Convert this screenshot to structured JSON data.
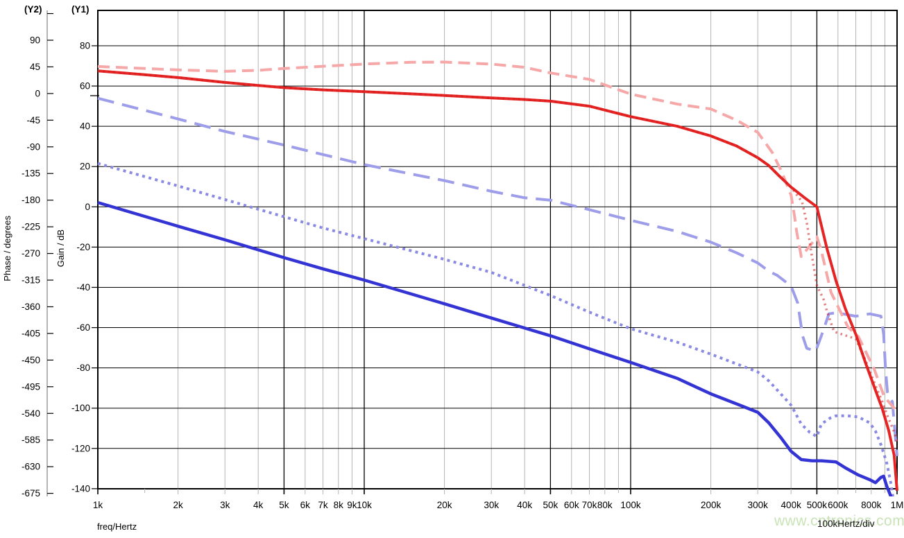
{
  "labels": {
    "y2_tag": "(Y2)",
    "y1_tag": "(Y1)",
    "phase_title": "Phase / degrees",
    "gain_title": "Gain / dB",
    "freq_title": "freq/Hertz",
    "scale_note": "100kHertz/div",
    "watermark": "www.cntronics.com"
  },
  "colors": {
    "gain_solid": "#e62424",
    "gain_dotted": "rgba(205,25,25,0.55)",
    "gain_dashed": "#f6a7a7",
    "phase_solid": "#3434d4",
    "phase_dotted": "#8a8ae4",
    "phase_dashed": "#9d9dea",
    "grid_minor": "#b4b4b4",
    "grid_major": "#000000",
    "y2_axis_bar": "#b4b4b4",
    "watermark": "#c9e3b7"
  },
  "chart_data": {
    "type": "line",
    "title": "",
    "x_axis": {
      "label": "freq/Hertz",
      "scale": "log",
      "min": 1000,
      "max": 1000000,
      "major_line_freqs": [
        5000,
        10000,
        50000,
        100000,
        500000
      ],
      "ticks": [
        {
          "label": "1k",
          "f": 1000
        },
        {
          "label": "2k",
          "f": 2000
        },
        {
          "label": "3k",
          "f": 3000
        },
        {
          "label": "4k",
          "f": 4000
        },
        {
          "label": "5k",
          "f": 5000
        },
        {
          "label": "6k",
          "f": 6000
        },
        {
          "label": "7k",
          "f": 7000
        },
        {
          "label": "8k",
          "f": 8000
        },
        {
          "label": "9k",
          "f": 9000
        },
        {
          "label": "10k",
          "f": 10000
        },
        {
          "label": "20k",
          "f": 20000
        },
        {
          "label": "30k",
          "f": 30000
        },
        {
          "label": "40k",
          "f": 40000
        },
        {
          "label": "50k",
          "f": 50000
        },
        {
          "label": "60k",
          "f": 60000
        },
        {
          "label": "70k",
          "f": 70000
        },
        {
          "label": "80k",
          "f": 80000
        },
        {
          "label": "100k",
          "f": 100000
        },
        {
          "label": "200k",
          "f": 200000
        },
        {
          "label": "300k",
          "f": 300000
        },
        {
          "label": "400k",
          "f": 400000
        },
        {
          "label": "500k",
          "f": 500000
        },
        {
          "label": "600k",
          "f": 600000
        },
        {
          "label": "800k",
          "f": 800000
        },
        {
          "label": "1M",
          "f": 1000000
        }
      ]
    },
    "y1_axis": {
      "label": "Gain / dB",
      "tick_step": 20,
      "ticks": [
        80,
        60,
        40,
        20,
        0,
        -20,
        -40,
        -60,
        -80,
        -100,
        -120,
        -140
      ]
    },
    "y2_axis": {
      "label": "Phase / degrees",
      "tick_step": 45,
      "unlabeled_ticks": [
        135
      ],
      "ticks": [
        90,
        45,
        0,
        -45,
        -90,
        -135,
        -180,
        -225,
        -270,
        -315,
        -360,
        -405,
        -450,
        -495,
        -540,
        -585,
        -630,
        -675
      ]
    },
    "series": [
      {
        "name": "phase-dashed",
        "axis": "Y2",
        "style": "dashed",
        "color_key": "phase_dashed",
        "width": 4,
        "dash": "24 12",
        "points": [
          [
            1000,
            -8
          ],
          [
            2000,
            -43
          ],
          [
            3000,
            -64
          ],
          [
            5000,
            -87
          ],
          [
            7000,
            -103
          ],
          [
            10000,
            -120
          ],
          [
            20000,
            -147
          ],
          [
            30000,
            -165
          ],
          [
            40000,
            -176
          ],
          [
            50000,
            -180
          ],
          [
            70000,
            -196
          ],
          [
            100000,
            -214
          ],
          [
            150000,
            -233
          ],
          [
            200000,
            -251
          ],
          [
            250000,
            -269
          ],
          [
            300000,
            -286
          ],
          [
            330000,
            -300
          ],
          [
            355000,
            -307
          ],
          [
            400000,
            -325
          ],
          [
            424000,
            -354
          ],
          [
            442000,
            -409
          ],
          [
            458000,
            -430
          ],
          [
            495000,
            -435
          ],
          [
            520000,
            -409
          ],
          [
            555000,
            -372
          ],
          [
            590000,
            -370
          ],
          [
            700000,
            -376
          ],
          [
            790000,
            -372
          ],
          [
            870000,
            -376
          ],
          [
            890000,
            -406
          ],
          [
            905000,
            -465
          ],
          [
            920000,
            -504
          ],
          [
            940000,
            -515
          ],
          [
            960000,
            -520
          ],
          [
            975000,
            -555
          ],
          [
            1000000,
            -612
          ]
        ]
      },
      {
        "name": "phase-dotted",
        "axis": "Y2",
        "style": "dotted",
        "color_key": "phase_dotted",
        "width": 4,
        "dash": "4 5.5",
        "points": [
          [
            1000,
            -118
          ],
          [
            2000,
            -156
          ],
          [
            3000,
            -179
          ],
          [
            5000,
            -208
          ],
          [
            7000,
            -227
          ],
          [
            10000,
            -245
          ],
          [
            20000,
            -280
          ],
          [
            30000,
            -302
          ],
          [
            50000,
            -341
          ],
          [
            70000,
            -369
          ],
          [
            100000,
            -397
          ],
          [
            150000,
            -420
          ],
          [
            200000,
            -440
          ],
          [
            300000,
            -470
          ],
          [
            330000,
            -485
          ],
          [
            400000,
            -526
          ],
          [
            437000,
            -558
          ],
          [
            470000,
            -572
          ],
          [
            500000,
            -579
          ],
          [
            520000,
            -558
          ],
          [
            560000,
            -548
          ],
          [
            590000,
            -544
          ],
          [
            650000,
            -544
          ],
          [
            715000,
            -546
          ],
          [
            790000,
            -556
          ],
          [
            830000,
            -570
          ],
          [
            870000,
            -593
          ],
          [
            915000,
            -624
          ],
          [
            950000,
            -660
          ],
          [
            965000,
            -682
          ]
        ]
      },
      {
        "name": "phase-solid",
        "axis": "Y2",
        "style": "solid",
        "color_key": "phase_solid",
        "width": 4.5,
        "dash": "",
        "points": [
          [
            1000,
            -184
          ],
          [
            2000,
            -224
          ],
          [
            3000,
            -247
          ],
          [
            5000,
            -277
          ],
          [
            7000,
            -296
          ],
          [
            10000,
            -315
          ],
          [
            20000,
            -355
          ],
          [
            30000,
            -379
          ],
          [
            50000,
            -409
          ],
          [
            70000,
            -431
          ],
          [
            100000,
            -454
          ],
          [
            150000,
            -481
          ],
          [
            200000,
            -507
          ],
          [
            250000,
            -524
          ],
          [
            300000,
            -538
          ],
          [
            330000,
            -556
          ],
          [
            365000,
            -580
          ],
          [
            400000,
            -604
          ],
          [
            437000,
            -618
          ],
          [
            480000,
            -620
          ],
          [
            520000,
            -620
          ],
          [
            590000,
            -622
          ],
          [
            640000,
            -632
          ],
          [
            715000,
            -644
          ],
          [
            790000,
            -652
          ],
          [
            830000,
            -657
          ],
          [
            870000,
            -648
          ],
          [
            890000,
            -646
          ],
          [
            915000,
            -663
          ],
          [
            950000,
            -681
          ],
          [
            965000,
            -690
          ]
        ]
      },
      {
        "name": "gain-dashed",
        "axis": "Y1",
        "style": "dashed",
        "color_key": "gain_dashed",
        "width": 4,
        "dash": "17 9",
        "points": [
          [
            1000,
            69.7
          ],
          [
            1500,
            68.7
          ],
          [
            2000,
            68.0
          ],
          [
            3000,
            67.3
          ],
          [
            4000,
            67.8
          ],
          [
            5000,
            68.7
          ],
          [
            7000,
            69.8
          ],
          [
            10000,
            70.9
          ],
          [
            15000,
            71.8
          ],
          [
            20000,
            71.9
          ],
          [
            30000,
            70.9
          ],
          [
            40000,
            69.3
          ],
          [
            50000,
            66.5
          ],
          [
            70000,
            63.3
          ],
          [
            100000,
            56.0
          ],
          [
            150000,
            51.0
          ],
          [
            200000,
            48.6
          ],
          [
            250000,
            43.0
          ],
          [
            300000,
            37.0
          ],
          [
            340000,
            27.0
          ],
          [
            370000,
            17.0
          ],
          [
            400000,
            5.9
          ],
          [
            412000,
            -4.4
          ],
          [
            420000,
            -12.4
          ],
          [
            437000,
            -24.7
          ],
          [
            470000,
            -19.5
          ],
          [
            500000,
            -14.9
          ],
          [
            520000,
            -21.8
          ],
          [
            565000,
            -42.5
          ],
          [
            655000,
            -59.8
          ],
          [
            715000,
            -64.4
          ],
          [
            820000,
            -80.5
          ],
          [
            895000,
            -94.3
          ],
          [
            975000,
            -100
          ],
          [
            1000000,
            -103
          ]
        ]
      },
      {
        "name": "gain-solid",
        "axis": "Y1",
        "style": "solid",
        "color_key": "gain_solid",
        "width": 4,
        "dash": "",
        "points": [
          [
            1000,
            67.5
          ],
          [
            1500,
            65.6
          ],
          [
            2000,
            64.2
          ],
          [
            3000,
            61.8
          ],
          [
            4000,
            60.3
          ],
          [
            5000,
            59.2
          ],
          [
            7000,
            58.1
          ],
          [
            10000,
            57.2
          ],
          [
            15000,
            56.1
          ],
          [
            20000,
            55.3
          ],
          [
            30000,
            54.1
          ],
          [
            40000,
            53.3
          ],
          [
            50000,
            52.5
          ],
          [
            70000,
            50.0
          ],
          [
            100000,
            44.8
          ],
          [
            150000,
            40.0
          ],
          [
            200000,
            35.2
          ],
          [
            250000,
            30.2
          ],
          [
            300000,
            24.4
          ],
          [
            330000,
            20.5
          ],
          [
            360000,
            15.5
          ],
          [
            400000,
            9.8
          ],
          [
            450000,
            4.5
          ],
          [
            500000,
            0
          ],
          [
            545000,
            -20.5
          ],
          [
            590000,
            -36.8
          ],
          [
            640000,
            -50.7
          ],
          [
            700000,
            -63.3
          ],
          [
            760000,
            -77.2
          ],
          [
            830000,
            -91.1
          ],
          [
            880000,
            -100.3
          ],
          [
            930000,
            -111
          ],
          [
            975000,
            -123.4
          ],
          [
            1000000,
            -141
          ]
        ]
      },
      {
        "name": "gain-dotted",
        "axis": "Y1",
        "style": "dotted",
        "color_key": "gain_dotted",
        "width": 3.5,
        "dash": "2.5 5",
        "points": [
          [
            1000,
            67.5
          ],
          [
            1500,
            65.6
          ],
          [
            2000,
            64.2
          ],
          [
            3000,
            61.8
          ],
          [
            4000,
            60.3
          ],
          [
            5000,
            59.2
          ],
          [
            7000,
            58.1
          ],
          [
            10000,
            57.2
          ],
          [
            15000,
            56.1
          ],
          [
            20000,
            55.3
          ],
          [
            30000,
            54.1
          ],
          [
            40000,
            53.3
          ],
          [
            50000,
            52.5
          ],
          [
            70000,
            50.0
          ],
          [
            100000,
            44.8
          ],
          [
            150000,
            40.0
          ],
          [
            200000,
            35.2
          ],
          [
            250000,
            30.2
          ],
          [
            300000,
            24.4
          ],
          [
            330000,
            20.5
          ],
          [
            360000,
            15.5
          ],
          [
            400000,
            9.8
          ],
          [
            440000,
            2.5
          ],
          [
            460000,
            -9
          ],
          [
            475000,
            -21.6
          ],
          [
            490000,
            -32
          ],
          [
            500000,
            -39
          ],
          [
            530000,
            -46
          ],
          [
            545000,
            -51.7
          ],
          [
            580000,
            -62
          ],
          [
            700000,
            -65.6
          ],
          [
            760000,
            -76
          ],
          [
            830000,
            -88.8
          ],
          [
            880000,
            -96.8
          ],
          [
            920000,
            -103.7
          ],
          [
            975000,
            -111.8
          ],
          [
            1000000,
            -117
          ]
        ]
      }
    ]
  }
}
